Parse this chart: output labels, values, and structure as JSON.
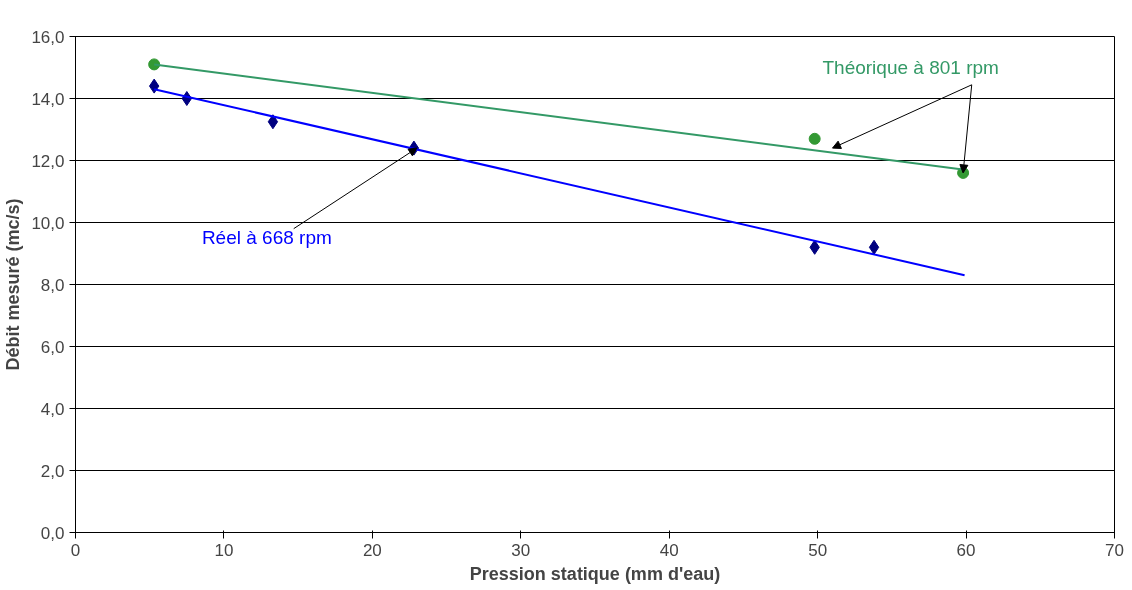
{
  "chart_data": {
    "type": "scatter",
    "xlabel": "Pression statique (mm d'eau)",
    "ylabel": "Débit mesuré (mc/s)",
    "xlim": [
      0,
      70
    ],
    "xticks": [
      0,
      10,
      20,
      30,
      40,
      50,
      60,
      70
    ],
    "ylim": [
      0,
      16
    ],
    "yticks": [
      {
        "value": 0,
        "label": "0,0"
      },
      {
        "value": 2,
        "label": "2,0"
      },
      {
        "value": 4,
        "label": "4,0"
      },
      {
        "value": 6,
        "label": "6,0"
      },
      {
        "value": 8,
        "label": "8,0"
      },
      {
        "value": 10,
        "label": "10,0"
      },
      {
        "value": 12,
        "label": "12,0"
      },
      {
        "value": 14,
        "label": "14,0"
      },
      {
        "value": 16,
        "label": "16,0"
      }
    ],
    "grid": "y",
    "series": [
      {
        "marker": "diamond",
        "color": "#000080",
        "x": [
          5.3,
          7.5,
          13.3,
          22.8,
          49.8,
          53.8
        ],
        "values": [
          14.4,
          14.0,
          13.25,
          12.4,
          9.2,
          9.2
        ]
      },
      {
        "type": "line",
        "color": "#0000ff",
        "x": [
          5.3,
          59.9
        ],
        "values": [
          14.3,
          8.3
        ]
      },
      {
        "marker": "circle",
        "color": "#339933",
        "x": [
          5.3,
          49.8,
          59.8
        ],
        "values": [
          15.1,
          12.7,
          11.6
        ]
      },
      {
        "type": "line",
        "color": "#339966",
        "x": [
          5.3,
          59.9
        ],
        "values": [
          15.1,
          11.7
        ]
      }
    ],
    "annotations": [
      {
        "text": "Théorique à 801 rpm",
        "x": 51,
        "y": 12.4
      },
      {
        "text": "Réel à 668 rpm",
        "x": 23,
        "y": 12.4
      }
    ]
  }
}
